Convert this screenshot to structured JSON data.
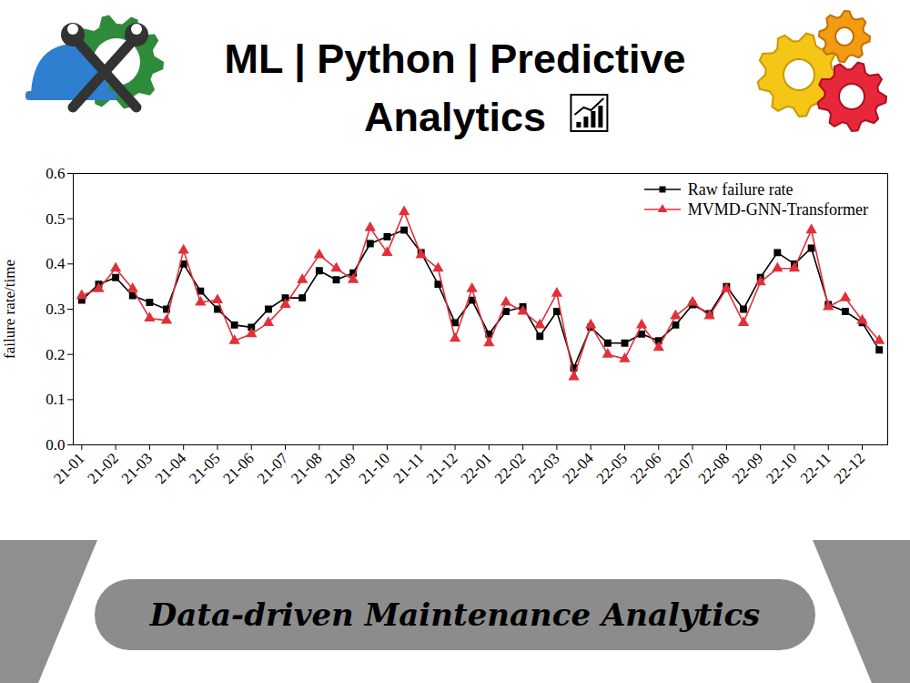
{
  "chart_data": {
    "type": "line",
    "title": "ML | Python | Predictive Analytics",
    "caption": "Data-driven Maintenance Analytics",
    "y_label": "failure rate/time",
    "categories": [
      "21-01",
      null,
      "21-02",
      null,
      "21-03",
      null,
      "21-04",
      null,
      "21-05",
      null,
      "21-06",
      null,
      "21-07",
      null,
      "21-08",
      null,
      "21-09",
      null,
      "21-10",
      null,
      "21-11",
      null,
      "21-12",
      null,
      "22-01",
      null,
      "22-02",
      null,
      "22-03",
      null,
      "22-04",
      null,
      "22-05",
      null,
      "22-06",
      null,
      "22-07",
      null,
      "22-08",
      null,
      "22-09",
      null,
      "22-10",
      null,
      "22-11",
      null,
      "22-12",
      null
    ],
    "series": [
      {
        "name": "Raw failure rate",
        "color": "#000000",
        "marker": "square",
        "line_style": "solid",
        "values": [
          0.32,
          0.355,
          0.37,
          0.33,
          0.315,
          0.3,
          0.4,
          0.34,
          0.3,
          0.265,
          0.26,
          0.3,
          0.325,
          0.325,
          0.385,
          0.365,
          0.38,
          0.445,
          0.46,
          0.475,
          0.425,
          0.355,
          0.27,
          0.32,
          0.245,
          0.295,
          0.305,
          0.24,
          0.295,
          0.17,
          0.26,
          0.225,
          0.225,
          0.245,
          0.23,
          0.265,
          0.31,
          0.29,
          0.35,
          0.3,
          0.37,
          0.425,
          0.4,
          0.435,
          0.31,
          0.295,
          0.27,
          0.21
        ]
      },
      {
        "name": "MVMD-GNN-Transformer",
        "color": "#e0303a",
        "marker": "triangle",
        "line_style": "solid",
        "values": [
          0.33,
          0.345,
          0.39,
          0.345,
          0.28,
          0.275,
          0.43,
          0.315,
          0.32,
          0.23,
          0.245,
          0.27,
          0.31,
          0.365,
          0.42,
          0.39,
          0.365,
          0.48,
          0.425,
          0.515,
          0.42,
          0.39,
          0.235,
          0.345,
          0.225,
          0.315,
          0.295,
          0.265,
          0.335,
          0.15,
          0.265,
          0.2,
          0.19,
          0.265,
          0.215,
          0.285,
          0.315,
          0.285,
          0.345,
          0.27,
          0.36,
          0.39,
          0.39,
          0.475,
          0.305,
          0.325,
          0.275,
          0.23
        ]
      }
    ],
    "ylim": [
      0,
      0.6
    ],
    "yticks": [
      {
        "value": 0,
        "label": "0.0"
      },
      0.1,
      0.2,
      0.3,
      0.4,
      0.5,
      0.6
    ],
    "legend": "top-right",
    "grid": false
  }
}
